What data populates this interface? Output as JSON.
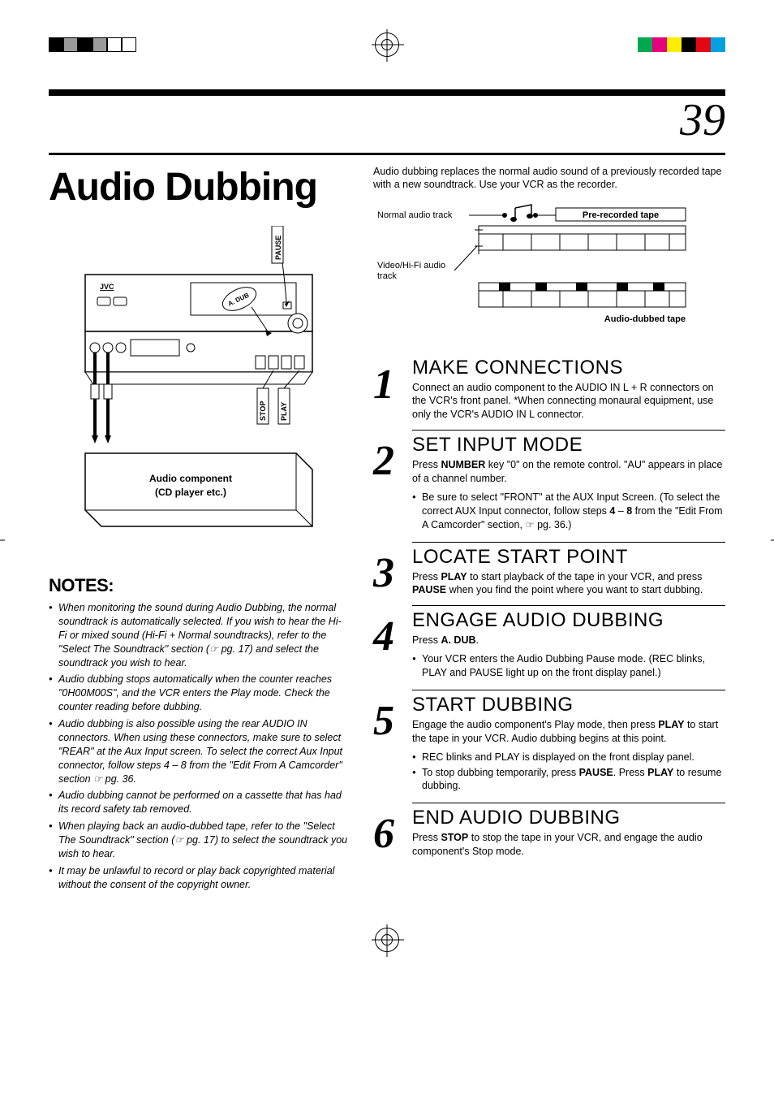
{
  "pageNumber": "39",
  "mainTitle": "Audio Dubbing",
  "topMarks": {
    "leftColors": [
      "#000000",
      "#9a9a9a",
      "#000000",
      "#9a9a9a",
      "#ffffff",
      "#ffffff"
    ],
    "rightColors": [
      "#00a94f",
      "#e6007e",
      "#ffed00",
      "#000000",
      "#e30613",
      "#00a0e3"
    ]
  },
  "device": {
    "pauseLabel": "PAUSE",
    "adubLabel": "A. DUB",
    "stopLabel": "STOP",
    "playLabel": "PLAY",
    "brandLabel": "JVC",
    "componentLabel1": "Audio component",
    "componentLabel2": "(CD player etc.)"
  },
  "notesTitle": "NOTES:",
  "notes": [
    "When monitoring the sound during Audio Dubbing, the normal soundtrack is automatically selected. If you wish to hear the Hi-Fi or mixed sound (Hi-Fi + Normal soundtracks), refer to the \"Select The Soundtrack\" section (☞ pg. 17) and select the soundtrack you wish to hear.",
    "Audio dubbing stops automatically when the counter reaches \"0H00M00S\", and the VCR enters the Play mode. Check the counter reading before dubbing.",
    "Audio dubbing is also possible using the rear AUDIO IN connectors. When using these connectors, make sure to select \"REAR\" at the Aux Input screen. To select the correct Aux Input connector, follow steps 4 – 8 from the \"Edit From A Camcorder\" section ☞ pg. 36.",
    "Audio dubbing cannot be performed on a cassette that has had its record safety tab removed.",
    "When playing back an audio-dubbed tape, refer to the \"Select The Soundtrack\" section (☞ pg. 17) to select the soundtrack you wish to hear.",
    "It may be unlawful to record or play back copyrighted material without the consent of the copyright owner."
  ],
  "introText": "Audio dubbing replaces the normal audio sound of a previously recorded tape with a new soundtrack. Use your VCR as the recorder.",
  "tapeDiagram": {
    "normalLabel": "Normal audio track",
    "videoLabel": "Video/Hi-Fi audio track",
    "prerecordedLabel": "Pre-recorded tape",
    "dubbedLabel": "Audio-dubbed tape"
  },
  "steps": [
    {
      "num": "1",
      "title": "MAKE CONNECTIONS",
      "text": "Connect an audio component to the AUDIO IN L + R connectors on the VCR's front panel. *When connecting monaural equipment, use only the VCR's AUDIO IN L connector.",
      "bullets": []
    },
    {
      "num": "2",
      "title": "SET INPUT MODE",
      "textHtml": "Press <b>NUMBER</b> key \"0\" on the remote control. \"AU\" appears in place of a channel number.",
      "bullets": [
        "Be sure to select \"FRONT\" at the AUX Input Screen. (To select the correct AUX Input connector, follow steps <b>4</b> – <b>8</b> from the \"Edit From A Camcorder\" section, ☞ pg. 36.)"
      ]
    },
    {
      "num": "3",
      "title": "LOCATE START POINT",
      "textHtml": "Press <b>PLAY</b> to start playback of the tape in your VCR, and press <b>PAUSE</b> when you find the point where you want to start dubbing.",
      "bullets": []
    },
    {
      "num": "4",
      "title": "ENGAGE AUDIO DUBBING",
      "textHtml": "Press <b>A. DUB</b>.",
      "bullets": [
        "Your VCR enters the Audio Dubbing Pause mode. (REC blinks, PLAY and PAUSE light up on the front display panel.)"
      ]
    },
    {
      "num": "5",
      "title": "START DUBBING",
      "textHtml": "Engage the audio component's Play mode, then press <b>PLAY</b> to start the tape in your VCR. Audio dubbing begins at this point.",
      "bullets": [
        "REC blinks and PLAY is displayed on the front display panel.",
        "To stop dubbing temporarily, press <b>PAUSE</b>. Press <b>PLAY</b> to resume dubbing."
      ]
    },
    {
      "num": "6",
      "title": "END AUDIO DUBBING",
      "textHtml": "Press <b>STOP</b> to stop the tape in your VCR, and engage the audio component's Stop mode.",
      "bullets": []
    }
  ]
}
